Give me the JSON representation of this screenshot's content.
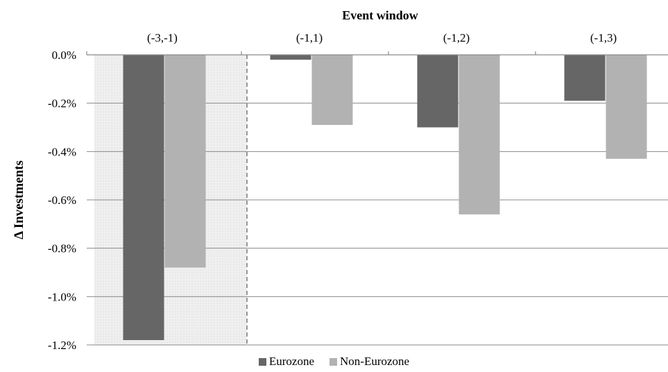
{
  "chart_data": {
    "type": "bar",
    "xlabel": "Event window",
    "ylabel": "Δ Investments",
    "categories": [
      "(-3,-1)",
      "(-1,1)",
      "(-1,2)",
      "(-1,3)"
    ],
    "series": [
      {
        "name": "Eurozone",
        "color": "#666666",
        "values": [
          -1.18,
          -0.02,
          -0.3,
          -0.19
        ]
      },
      {
        "name": "Non-Eurozone",
        "color": "#b2b2b2",
        "values": [
          -0.88,
          -0.29,
          -0.66,
          -0.43
        ]
      }
    ],
    "ylim": [
      -1.2,
      0.0
    ],
    "yticks": [
      {
        "value": 0.0,
        "label": "0.0%"
      },
      {
        "value": -0.2,
        "label": "-0.2%"
      },
      {
        "value": -0.4,
        "label": "-0.4%"
      },
      {
        "value": -0.6,
        "label": "-0.6%"
      },
      {
        "value": -0.8,
        "label": "-0.8%"
      },
      {
        "value": -1.0,
        "label": "-1.0%"
      },
      {
        "value": -1.2,
        "label": "-1.2%"
      }
    ],
    "highlight_category": "(-3,-1)",
    "grid": true,
    "legend_position": "bottom"
  }
}
